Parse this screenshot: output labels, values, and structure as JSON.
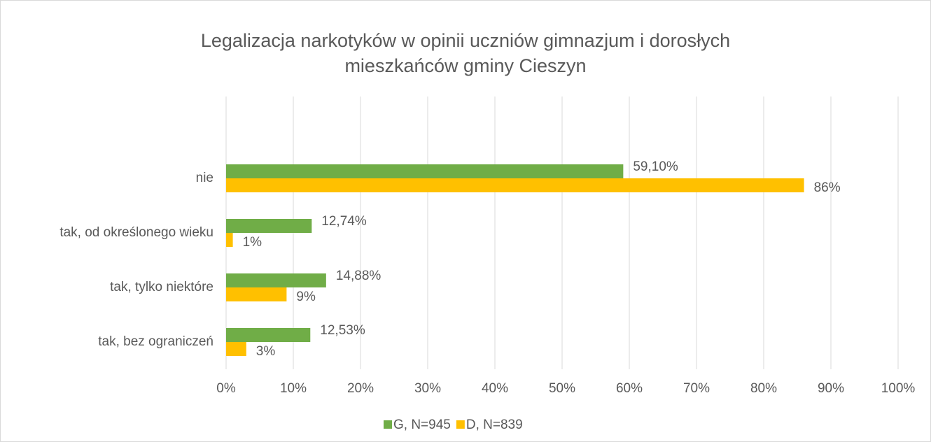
{
  "chart_data": {
    "type": "barh",
    "title": [
      "Legalizacja narkotyków w opinii uczniów gimnazjum i dorosłych",
      "mieszkańców gminy Cieszyn"
    ],
    "categories": [
      null,
      "nie",
      "tak, od określonego wieku",
      "tak, tylko niektóre",
      "tak, bez ograniczeń"
    ],
    "series": [
      {
        "name": "G, N=945",
        "color": "#70ad47",
        "values": [
          null,
          59.1,
          12.74,
          14.88,
          12.53
        ],
        "value_labels": [
          null,
          "59,10%",
          "12,74%",
          "14,88%",
          "12,53%"
        ]
      },
      {
        "name": "D, N=839",
        "color": "#ffc000",
        "values": [
          null,
          86,
          1,
          9,
          3
        ],
        "value_labels": [
          null,
          "86%",
          "1%",
          "9%",
          "3%"
        ]
      }
    ],
    "xlim": [
      0,
      100
    ],
    "xticks": [
      {
        "value": 0,
        "label": "0%"
      },
      {
        "value": 10,
        "label": "10%"
      },
      {
        "value": 20,
        "label": "20%"
      },
      {
        "value": 30,
        "label": "30%"
      },
      {
        "value": 40,
        "label": "40%"
      },
      {
        "value": 50,
        "label": "50%"
      },
      {
        "value": 60,
        "label": "60%"
      },
      {
        "value": 70,
        "label": "70%"
      },
      {
        "value": 80,
        "label": "80%"
      },
      {
        "value": 90,
        "label": "90%"
      },
      {
        "value": 100,
        "label": "100%"
      }
    ],
    "grid": true,
    "legend": "bottom"
  }
}
